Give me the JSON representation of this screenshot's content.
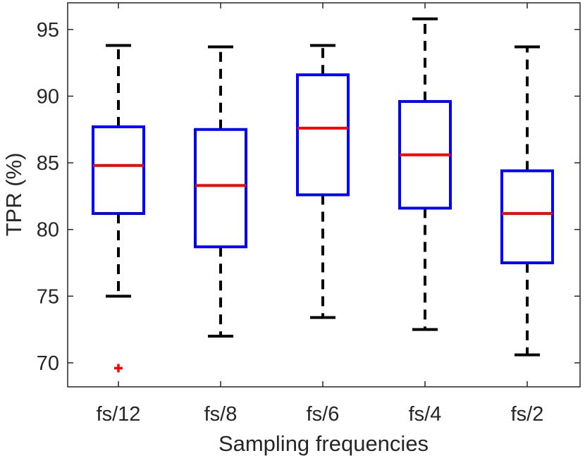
{
  "chart_data": {
    "type": "box",
    "title": "",
    "xlabel": "Sampling frequencies",
    "ylabel": "TPR (%)",
    "ylim": [
      68.2,
      97
    ],
    "yticks": [
      70,
      75,
      80,
      85,
      90,
      95
    ],
    "grid": false,
    "categories": [
      "fs/12",
      "fs/8",
      "fs/6",
      "fs/4",
      "fs/2"
    ],
    "boxes": [
      {
        "whisker_low": 75.0,
        "q1": 81.2,
        "median": 84.8,
        "q3": 87.7,
        "whisker_high": 93.8,
        "outliers": [
          69.6
        ]
      },
      {
        "whisker_low": 72.0,
        "q1": 78.7,
        "median": 83.3,
        "q3": 87.5,
        "whisker_high": 93.7,
        "outliers": []
      },
      {
        "whisker_low": 73.4,
        "q1": 82.6,
        "median": 87.6,
        "q3": 91.6,
        "whisker_high": 93.8,
        "outliers": []
      },
      {
        "whisker_low": 72.5,
        "q1": 81.6,
        "median": 85.6,
        "q3": 89.6,
        "whisker_high": 95.8,
        "outliers": []
      },
      {
        "whisker_low": 70.6,
        "q1": 77.5,
        "median": 81.2,
        "q3": 84.4,
        "whisker_high": 93.7,
        "outliers": []
      }
    ],
    "colors": {
      "box": "#0000ff",
      "median": "#ff0000",
      "whisker": "#000000",
      "outlier": "#ff0000",
      "axis": "#262626"
    }
  }
}
